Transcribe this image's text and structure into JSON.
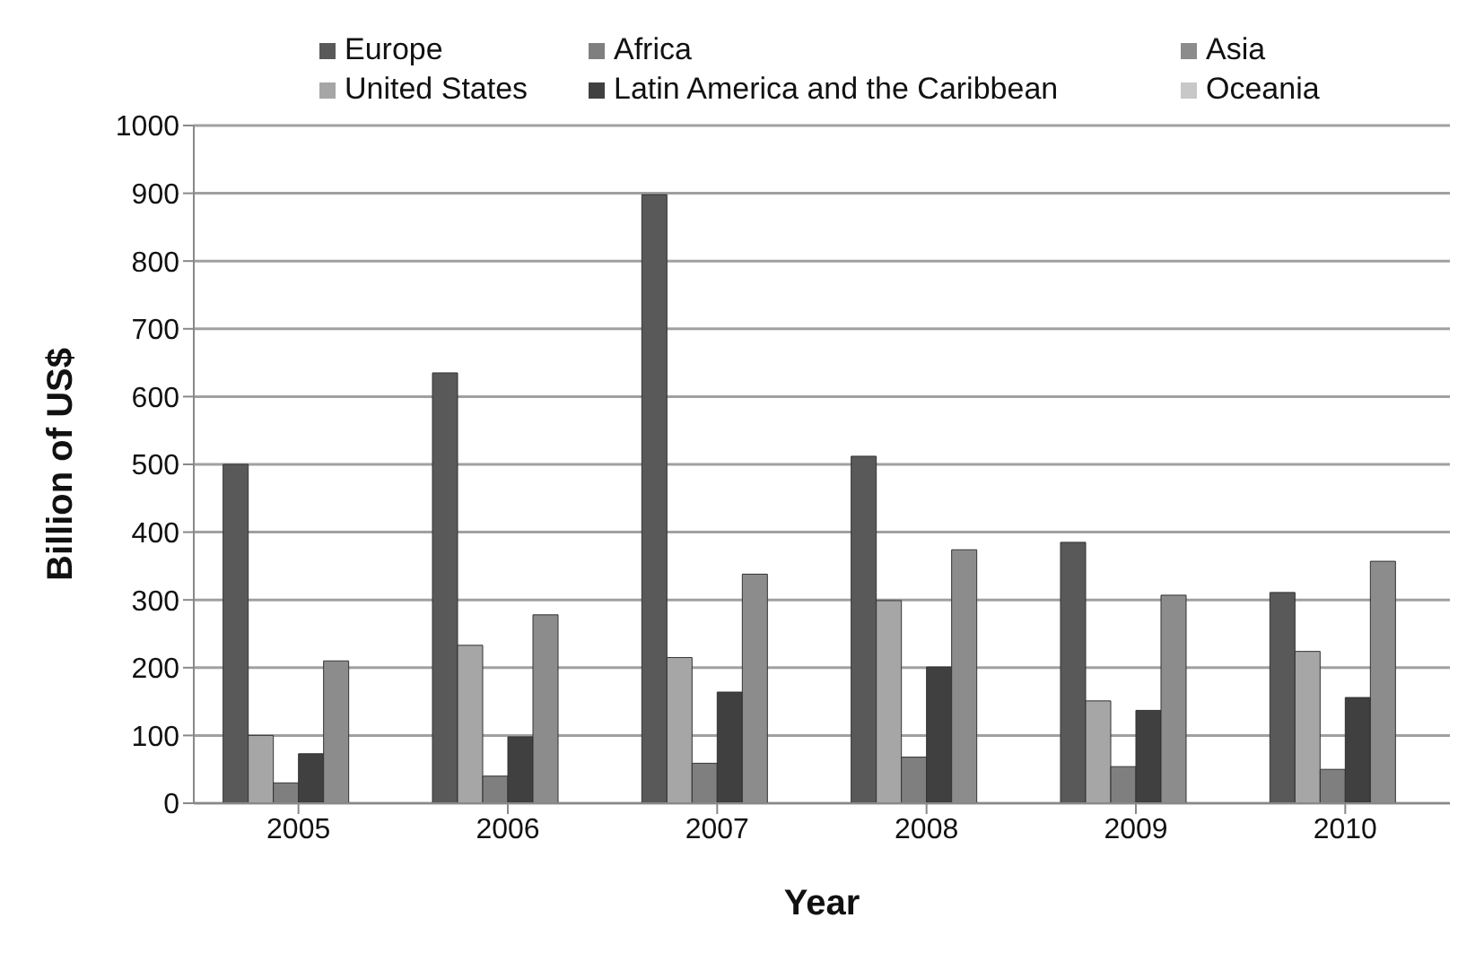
{
  "chart_data": {
    "type": "bar",
    "xlabel": "Year",
    "ylabel": "Billion of US$",
    "categories": [
      "2005",
      "2006",
      "2007",
      "2008",
      "2009",
      "2010"
    ],
    "series": [
      {
        "name": "Europe",
        "color": "#595959",
        "values": [
          500,
          635,
          898,
          512,
          385,
          311
        ]
      },
      {
        "name": "United States",
        "color": "#a6a6a6",
        "values": [
          100,
          233,
          215,
          299,
          151,
          224
        ]
      },
      {
        "name": "Africa",
        "color": "#7f7f7f",
        "values": [
          30,
          40,
          59,
          68,
          54,
          50
        ]
      },
      {
        "name": "Latin America and the Caribbean",
        "color": "#404040",
        "values": [
          73,
          98,
          164,
          201,
          137,
          156
        ]
      },
      {
        "name": "Asia",
        "color": "#8c8c8c",
        "values": [
          210,
          278,
          338,
          374,
          307,
          357
        ]
      },
      {
        "name": "Oceania",
        "color": "#c8c8c8",
        "values": [
          0,
          0,
          0,
          0,
          0,
          0
        ]
      }
    ],
    "ylim": [
      0,
      1000
    ],
    "yticks": [
      0,
      100,
      200,
      300,
      400,
      500,
      600,
      700,
      800,
      900,
      1000
    ],
    "grid": "y",
    "legend": "top"
  }
}
